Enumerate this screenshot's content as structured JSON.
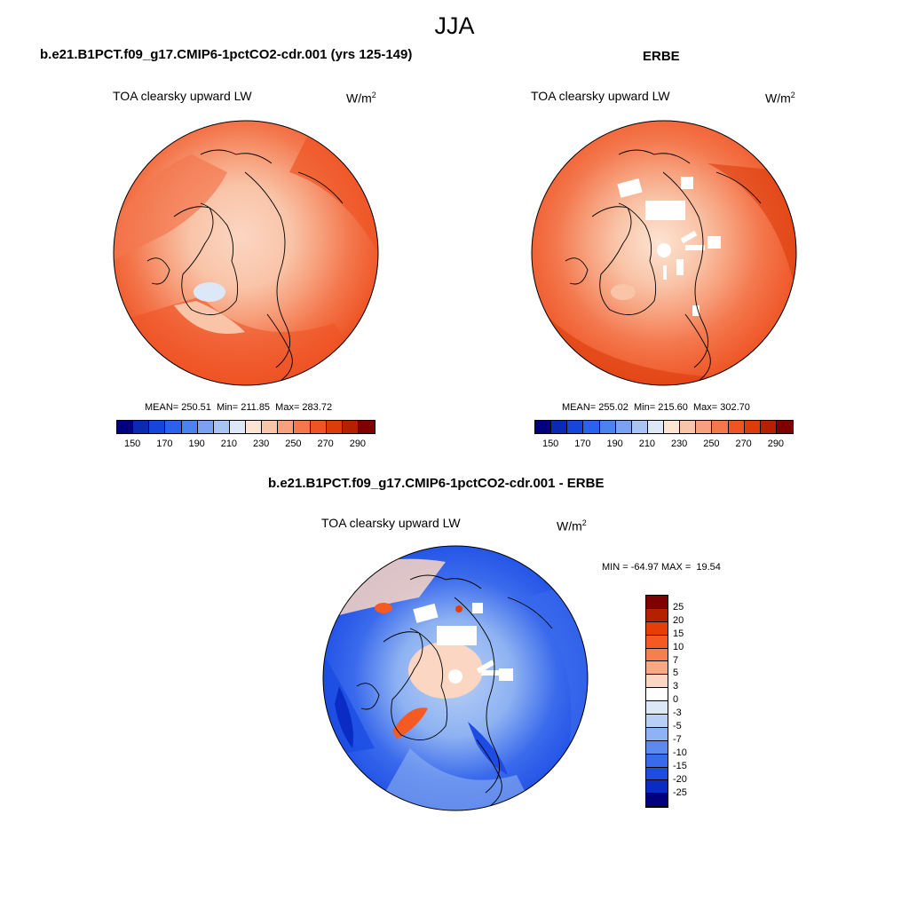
{
  "figure": {
    "title": "JJA"
  },
  "panels": [
    {
      "header": "b.e21.B1PCT.f09_g17.CMIP6-1pctCO2-cdr.001 (yrs 125-149)",
      "variable": "TOA clearsky upward LW",
      "units_base": "W/m",
      "units_exp": "2",
      "stats": "MEAN= 250.51  Min= 211.85  Max= 283.72"
    },
    {
      "header": "ERBE",
      "variable": "TOA clearsky upward LW",
      "units_base": "W/m",
      "units_exp": "2",
      "stats": "MEAN= 255.02  Min= 215.60  Max= 302.70"
    },
    {
      "header": "b.e21.B1PCT.f09_g17.CMIP6-1pctCO2-cdr.001 - ERBE",
      "variable": "TOA clearsky upward LW",
      "units_base": "W/m",
      "units_exp": "2",
      "stats": "MIN = -64.97 MAX =  19.54"
    }
  ],
  "colorbar_abs": {
    "colors": [
      "#00007f",
      "#0a2ab4",
      "#1446dc",
      "#2a62ee",
      "#4a82ee",
      "#7aa2f0",
      "#a8c4f4",
      "#dce8f8",
      "#fde4d2",
      "#f9c4a8",
      "#f7a07c",
      "#f4784e",
      "#ee5424",
      "#dc3c0c",
      "#b42000",
      "#7f0000"
    ],
    "tick_labels": [
      "150",
      "170",
      "190",
      "210",
      "230",
      "250",
      "270",
      "290"
    ]
  },
  "colorbar_diff": {
    "colors": [
      "#7f0000",
      "#b42000",
      "#e63e06",
      "#f55a22",
      "#f77e50",
      "#f9a884",
      "#fbd6c2",
      "#ffffff",
      "#dce8f8",
      "#b8d0f6",
      "#8eb2f2",
      "#5c8aee",
      "#3a6aec",
      "#1c4ce4",
      "#0a2cc4",
      "#00007f"
    ],
    "tick_labels": [
      "25",
      "20",
      "15",
      "10",
      "7",
      "5",
      "3",
      "0",
      "-3",
      "-5",
      "-7",
      "-10",
      "-15",
      "-20",
      "-25"
    ]
  }
}
